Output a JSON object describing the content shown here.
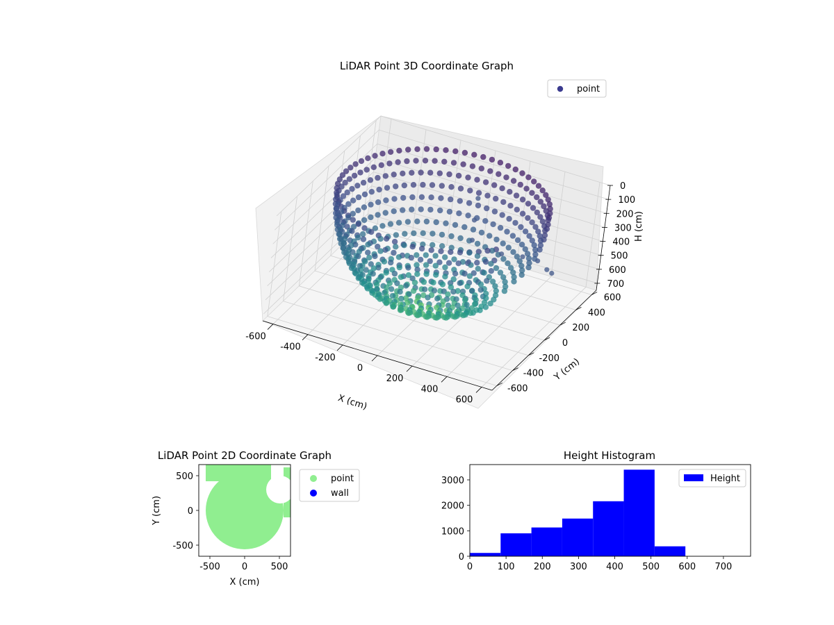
{
  "chart_data": [
    {
      "type": "scatter",
      "projection": "3d",
      "title": "LiDAR Point 3D Coordinate Graph",
      "xlabel": "X (cm)",
      "ylabel": "Y (cm)",
      "zlabel": "H (cm)",
      "xticks": [
        -600,
        -400,
        -200,
        0,
        200,
        400,
        600
      ],
      "yticks": [
        -600,
        -400,
        -200,
        0,
        200,
        400,
        600
      ],
      "zticks": [
        0,
        100,
        200,
        300,
        400,
        500,
        600,
        700
      ],
      "zlim": [
        750,
        0
      ],
      "z_inverted": true,
      "colormap": "viridis",
      "legend": [
        {
          "label": "point",
          "color": "#3b3b8f"
        }
      ],
      "legend_loc": "upper-right",
      "grid": true,
      "shape": "bowl",
      "bowl_radius_cm": 560,
      "rim_height_cm": 0,
      "bottom_height_cm": 720,
      "rim_gap_angle_deg": [
        -35,
        15
      ],
      "inner_points": [
        {
          "x": 30,
          "y": 420,
          "h": 200
        },
        {
          "x": 90,
          "y": 250,
          "h": 240
        },
        {
          "x": 150,
          "y": 100,
          "h": 280
        },
        {
          "x": 200,
          "y": -40,
          "h": 340
        },
        {
          "x": 330,
          "y": 80,
          "h": 300
        },
        {
          "x": 430,
          "y": 130,
          "h": 310
        },
        {
          "x": 520,
          "y": 120,
          "h": 300
        },
        {
          "x": 600,
          "y": 60,
          "h": 300
        },
        {
          "x": 660,
          "y": -20,
          "h": 260
        }
      ]
    },
    {
      "type": "scatter",
      "title": "LiDAR Point 2D Coordinate Graph",
      "xlabel": "X (cm)",
      "ylabel": "Y (cm)",
      "xticks": [
        -500,
        0,
        500
      ],
      "yticks": [
        -500,
        0,
        500
      ],
      "xlim": [
        -660,
        660
      ],
      "ylim": [
        -660,
        660
      ],
      "series": [
        {
          "name": "point",
          "color": "#90ee90"
        },
        {
          "name": "wall",
          "color": "#0000ff"
        }
      ],
      "region_center": [
        0,
        0
      ],
      "region_radius_cm": 560,
      "legend_loc": "outside-right"
    },
    {
      "type": "bar",
      "histogram": true,
      "title": "Height Histogram",
      "xticks": [
        0,
        100,
        200,
        300,
        400,
        500,
        600,
        700
      ],
      "yticks": [
        0,
        1000,
        2000,
        3000
      ],
      "xlim": [
        0,
        775
      ],
      "ylim": [
        0,
        3600
      ],
      "color": "#0000ff",
      "legend": [
        {
          "label": "Height",
          "color": "#0000ff"
        }
      ],
      "legend_loc": "upper-right",
      "bins": [
        {
          "x0": 0,
          "x1": 85,
          "count": 130
        },
        {
          "x0": 85,
          "x1": 170,
          "count": 900
        },
        {
          "x0": 170,
          "x1": 255,
          "count": 1130
        },
        {
          "x0": 255,
          "x1": 340,
          "count": 1480
        },
        {
          "x0": 340,
          "x1": 425,
          "count": 2160
        },
        {
          "x0": 425,
          "x1": 510,
          "count": 3400
        },
        {
          "x0": 510,
          "x1": 595,
          "count": 390
        },
        {
          "x0": 595,
          "x1": 680,
          "count": 0
        },
        {
          "x0": 680,
          "x1": 765,
          "count": 0
        }
      ]
    }
  ]
}
